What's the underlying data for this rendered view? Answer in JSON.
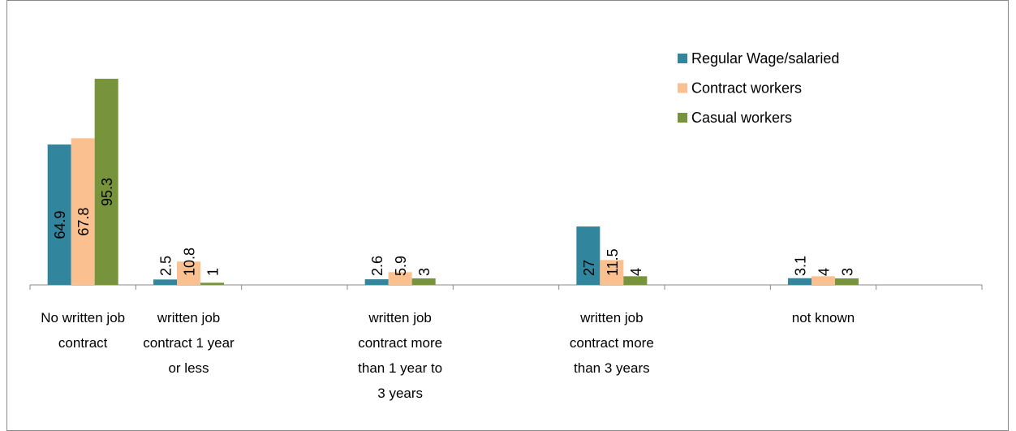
{
  "chart_data": {
    "type": "bar",
    "categories": [
      "No written job contract",
      "written job contract 1 year or less",
      null,
      "written job contract more than 1 year to 3 years",
      null,
      "written job contract more than 3 years",
      null,
      "not known",
      null
    ],
    "series": [
      {
        "name": "Regular Wage/salaried",
        "color": "#31859c",
        "values": [
          64.9,
          2.5,
          null,
          2.6,
          null,
          27,
          null,
          3.1,
          null
        ]
      },
      {
        "name": "Contract workers",
        "color": "#fac090",
        "values": [
          67.8,
          10.8,
          null,
          5.9,
          null,
          11.5,
          null,
          4,
          null
        ]
      },
      {
        "name": "Casual workers",
        "color": "#77933c",
        "values": [
          95.3,
          1,
          null,
          3,
          null,
          4,
          null,
          3,
          null
        ]
      }
    ],
    "ylim": [
      0,
      100
    ],
    "legend": "upper right",
    "grid": false
  }
}
